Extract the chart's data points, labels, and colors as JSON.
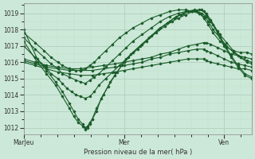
{
  "background_color": "#cce8d8",
  "grid_major_color": "#aaccb8",
  "grid_minor_color": "#c0dcc8",
  "line_color": "#1a5c2a",
  "ylabel_ticks": [
    1012,
    1013,
    1014,
    1015,
    1016,
    1017,
    1018,
    1019
  ],
  "xlabel": "Pression niveau de la mer( hPa )",
  "xtick_labels": [
    "MarJeu",
    "Mer",
    "Ven"
  ],
  "xtick_positions": [
    0.0,
    0.44,
    0.88
  ],
  "ylim": [
    1011.6,
    1019.6
  ],
  "xlim": [
    0.0,
    1.0
  ],
  "series": [
    {
      "pts": [
        [
          0.0,
          1018.0
        ],
        [
          0.06,
          1016.2
        ],
        [
          0.1,
          1015.5
        ],
        [
          0.14,
          1014.8
        ],
        [
          0.17,
          1014.2
        ],
        [
          0.2,
          1013.5
        ],
        [
          0.22,
          1013.0
        ],
        [
          0.24,
          1012.5
        ],
        [
          0.26,
          1012.2
        ],
        [
          0.27,
          1012.0
        ],
        [
          0.28,
          1012.1
        ],
        [
          0.29,
          1012.3
        ],
        [
          0.3,
          1012.5
        ],
        [
          0.32,
          1013.0
        ],
        [
          0.34,
          1013.8
        ],
        [
          0.37,
          1014.5
        ],
        [
          0.4,
          1015.2
        ],
        [
          0.43,
          1015.8
        ],
        [
          0.46,
          1016.3
        ],
        [
          0.5,
          1016.8
        ],
        [
          0.54,
          1017.3
        ],
        [
          0.58,
          1017.8
        ],
        [
          0.62,
          1018.2
        ],
        [
          0.65,
          1018.5
        ],
        [
          0.68,
          1018.7
        ],
        [
          0.71,
          1018.9
        ],
        [
          0.74,
          1019.1
        ],
        [
          0.77,
          1019.2
        ],
        [
          0.79,
          1019.1
        ],
        [
          0.8,
          1018.9
        ],
        [
          0.82,
          1018.5
        ],
        [
          0.85,
          1017.8
        ],
        [
          0.88,
          1017.0
        ],
        [
          0.91,
          1016.3
        ],
        [
          0.94,
          1015.7
        ],
        [
          0.97,
          1015.2
        ],
        [
          1.0,
          1015.0
        ]
      ]
    },
    {
      "pts": [
        [
          0.0,
          1017.3
        ],
        [
          0.06,
          1016.0
        ],
        [
          0.1,
          1015.3
        ],
        [
          0.14,
          1014.6
        ],
        [
          0.17,
          1013.9
        ],
        [
          0.2,
          1013.2
        ],
        [
          0.22,
          1012.7
        ],
        [
          0.24,
          1012.3
        ],
        [
          0.26,
          1012.1
        ],
        [
          0.27,
          1011.9
        ],
        [
          0.28,
          1012.0
        ],
        [
          0.29,
          1012.2
        ],
        [
          0.3,
          1012.5
        ],
        [
          0.32,
          1013.2
        ],
        [
          0.35,
          1014.0
        ],
        [
          0.38,
          1014.8
        ],
        [
          0.41,
          1015.4
        ],
        [
          0.44,
          1016.0
        ],
        [
          0.47,
          1016.5
        ],
        [
          0.51,
          1017.0
        ],
        [
          0.55,
          1017.5
        ],
        [
          0.59,
          1018.0
        ],
        [
          0.63,
          1018.4
        ],
        [
          0.66,
          1018.7
        ],
        [
          0.69,
          1018.9
        ],
        [
          0.72,
          1019.1
        ],
        [
          0.75,
          1019.2
        ],
        [
          0.78,
          1019.2
        ],
        [
          0.8,
          1019.0
        ],
        [
          0.82,
          1018.6
        ],
        [
          0.85,
          1017.9
        ],
        [
          0.88,
          1017.1
        ],
        [
          0.91,
          1016.4
        ],
        [
          0.94,
          1015.8
        ],
        [
          0.97,
          1015.3
        ],
        [
          1.0,
          1015.1
        ]
      ]
    },
    {
      "pts": [
        [
          0.0,
          1017.0
        ],
        [
          0.05,
          1016.3
        ],
        [
          0.09,
          1015.8
        ],
        [
          0.12,
          1015.3
        ],
        [
          0.15,
          1015.0
        ],
        [
          0.17,
          1014.7
        ],
        [
          0.19,
          1014.4
        ],
        [
          0.21,
          1014.2
        ],
        [
          0.23,
          1014.0
        ],
        [
          0.25,
          1013.9
        ],
        [
          0.27,
          1013.8
        ],
        [
          0.29,
          1013.9
        ],
        [
          0.31,
          1014.2
        ],
        [
          0.33,
          1014.6
        ],
        [
          0.36,
          1015.0
        ],
        [
          0.39,
          1015.4
        ],
        [
          0.42,
          1015.8
        ],
        [
          0.45,
          1016.2
        ],
        [
          0.48,
          1016.6
        ],
        [
          0.52,
          1017.1
        ],
        [
          0.56,
          1017.6
        ],
        [
          0.6,
          1018.1
        ],
        [
          0.64,
          1018.5
        ],
        [
          0.67,
          1018.8
        ],
        [
          0.7,
          1019.0
        ],
        [
          0.73,
          1019.1
        ],
        [
          0.76,
          1019.1
        ],
        [
          0.78,
          1019.0
        ],
        [
          0.8,
          1018.8
        ],
        [
          0.83,
          1018.3
        ],
        [
          0.86,
          1017.7
        ],
        [
          0.89,
          1017.2
        ],
        [
          0.92,
          1016.7
        ],
        [
          0.95,
          1016.3
        ],
        [
          0.98,
          1016.0
        ],
        [
          1.0,
          1015.9
        ]
      ]
    },
    {
      "pts": [
        [
          0.0,
          1016.2
        ],
        [
          0.05,
          1016.0
        ],
        [
          0.1,
          1015.8
        ],
        [
          0.15,
          1015.7
        ],
        [
          0.2,
          1015.6
        ],
        [
          0.25,
          1015.6
        ],
        [
          0.3,
          1015.7
        ],
        [
          0.35,
          1015.8
        ],
        [
          0.4,
          1015.9
        ],
        [
          0.44,
          1016.0
        ],
        [
          0.48,
          1016.1
        ],
        [
          0.52,
          1016.2
        ],
        [
          0.56,
          1016.3
        ],
        [
          0.6,
          1016.5
        ],
        [
          0.64,
          1016.6
        ],
        [
          0.68,
          1016.8
        ],
        [
          0.72,
          1017.0
        ],
        [
          0.76,
          1017.1
        ],
        [
          0.79,
          1017.2
        ],
        [
          0.8,
          1017.2
        ],
        [
          0.82,
          1017.1
        ],
        [
          0.85,
          1016.9
        ],
        [
          0.88,
          1016.7
        ],
        [
          0.91,
          1016.5
        ],
        [
          0.94,
          1016.4
        ],
        [
          0.97,
          1016.3
        ],
        [
          1.0,
          1016.2
        ]
      ]
    },
    {
      "pts": [
        [
          0.0,
          1016.1
        ],
        [
          0.05,
          1015.9
        ],
        [
          0.1,
          1015.7
        ],
        [
          0.15,
          1015.6
        ],
        [
          0.2,
          1015.5
        ],
        [
          0.25,
          1015.5
        ],
        [
          0.3,
          1015.5
        ],
        [
          0.35,
          1015.6
        ],
        [
          0.4,
          1015.7
        ],
        [
          0.44,
          1015.8
        ],
        [
          0.48,
          1015.9
        ],
        [
          0.52,
          1016.0
        ],
        [
          0.56,
          1016.2
        ],
        [
          0.6,
          1016.3
        ],
        [
          0.64,
          1016.5
        ],
        [
          0.68,
          1016.6
        ],
        [
          0.72,
          1016.7
        ],
        [
          0.76,
          1016.8
        ],
        [
          0.79,
          1016.8
        ],
        [
          0.8,
          1016.7
        ],
        [
          0.82,
          1016.6
        ],
        [
          0.85,
          1016.4
        ],
        [
          0.88,
          1016.2
        ],
        [
          0.91,
          1016.0
        ],
        [
          0.94,
          1015.9
        ],
        [
          0.97,
          1015.8
        ],
        [
          1.0,
          1015.7
        ]
      ]
    },
    {
      "pts": [
        [
          0.0,
          1016.0
        ],
        [
          0.05,
          1015.8
        ],
        [
          0.1,
          1015.6
        ],
        [
          0.15,
          1015.4
        ],
        [
          0.2,
          1015.3
        ],
        [
          0.25,
          1015.2
        ],
        [
          0.3,
          1015.2
        ],
        [
          0.35,
          1015.3
        ],
        [
          0.4,
          1015.4
        ],
        [
          0.44,
          1015.5
        ],
        [
          0.48,
          1015.6
        ],
        [
          0.52,
          1015.7
        ],
        [
          0.56,
          1015.8
        ],
        [
          0.6,
          1015.9
        ],
        [
          0.64,
          1016.0
        ],
        [
          0.68,
          1016.1
        ],
        [
          0.72,
          1016.2
        ],
        [
          0.76,
          1016.2
        ],
        [
          0.79,
          1016.2
        ],
        [
          0.8,
          1016.1
        ],
        [
          0.82,
          1016.0
        ],
        [
          0.85,
          1015.9
        ],
        [
          0.88,
          1015.8
        ],
        [
          0.91,
          1015.7
        ],
        [
          0.94,
          1015.6
        ],
        [
          0.97,
          1015.6
        ],
        [
          1.0,
          1015.5
        ]
      ]
    },
    {
      "pts": [
        [
          0.0,
          1017.5
        ],
        [
          0.05,
          1016.8
        ],
        [
          0.09,
          1016.3
        ],
        [
          0.12,
          1015.9
        ],
        [
          0.15,
          1015.6
        ],
        [
          0.17,
          1015.3
        ],
        [
          0.2,
          1015.1
        ],
        [
          0.23,
          1014.9
        ],
        [
          0.25,
          1014.8
        ],
        [
          0.27,
          1014.7
        ],
        [
          0.29,
          1014.9
        ],
        [
          0.31,
          1015.1
        ],
        [
          0.33,
          1015.3
        ],
        [
          0.36,
          1015.7
        ],
        [
          0.39,
          1016.1
        ],
        [
          0.42,
          1016.5
        ],
        [
          0.45,
          1016.9
        ],
        [
          0.48,
          1017.3
        ],
        [
          0.52,
          1017.7
        ],
        [
          0.56,
          1018.1
        ],
        [
          0.6,
          1018.5
        ],
        [
          0.64,
          1018.8
        ],
        [
          0.68,
          1019.0
        ],
        [
          0.71,
          1019.1
        ],
        [
          0.74,
          1019.1
        ],
        [
          0.77,
          1019.0
        ],
        [
          0.79,
          1018.8
        ],
        [
          0.81,
          1018.5
        ],
        [
          0.83,
          1018.0
        ],
        [
          0.86,
          1017.5
        ],
        [
          0.89,
          1017.0
        ],
        [
          0.92,
          1016.6
        ],
        [
          0.95,
          1016.3
        ],
        [
          0.98,
          1016.1
        ],
        [
          1.0,
          1016.0
        ]
      ]
    },
    {
      "pts": [
        [
          0.0,
          1017.8
        ],
        [
          0.05,
          1017.2
        ],
        [
          0.09,
          1016.7
        ],
        [
          0.12,
          1016.3
        ],
        [
          0.15,
          1016.0
        ],
        [
          0.17,
          1015.8
        ],
        [
          0.2,
          1015.6
        ],
        [
          0.23,
          1015.5
        ],
        [
          0.25,
          1015.5
        ],
        [
          0.27,
          1015.6
        ],
        [
          0.29,
          1015.8
        ],
        [
          0.31,
          1016.0
        ],
        [
          0.33,
          1016.3
        ],
        [
          0.36,
          1016.7
        ],
        [
          0.39,
          1017.1
        ],
        [
          0.42,
          1017.5
        ],
        [
          0.45,
          1017.8
        ],
        [
          0.48,
          1018.1
        ],
        [
          0.52,
          1018.4
        ],
        [
          0.56,
          1018.7
        ],
        [
          0.6,
          1018.9
        ],
        [
          0.64,
          1019.1
        ],
        [
          0.68,
          1019.2
        ],
        [
          0.71,
          1019.2
        ],
        [
          0.74,
          1019.1
        ],
        [
          0.77,
          1019.0
        ],
        [
          0.79,
          1018.7
        ],
        [
          0.81,
          1018.3
        ],
        [
          0.83,
          1017.8
        ],
        [
          0.86,
          1017.3
        ],
        [
          0.89,
          1016.9
        ],
        [
          0.92,
          1016.7
        ],
        [
          0.95,
          1016.6
        ],
        [
          0.98,
          1016.6
        ],
        [
          1.0,
          1016.5
        ]
      ]
    }
  ]
}
